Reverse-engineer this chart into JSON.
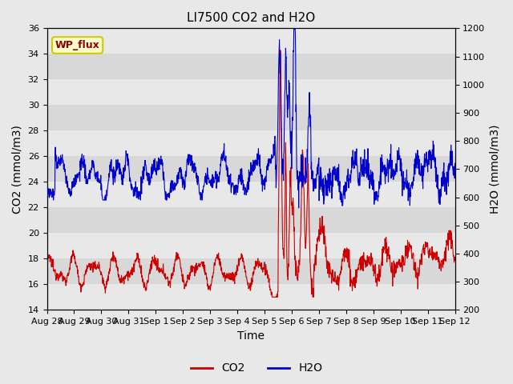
{
  "title": "LI7500 CO2 and H2O",
  "xlabel": "Time",
  "ylabel_left": "CO2 (mmol/m3)",
  "ylabel_right": "H2O (mmol/m3)",
  "ylim_left": [
    14,
    36
  ],
  "ylim_right": [
    200,
    1200
  ],
  "yticks_left": [
    14,
    16,
    18,
    20,
    22,
    24,
    26,
    28,
    30,
    32,
    34,
    36
  ],
  "yticks_right": [
    200,
    300,
    400,
    500,
    600,
    700,
    800,
    900,
    1000,
    1100,
    1200
  ],
  "xtick_labels": [
    "Aug 28",
    "Aug 29",
    "Aug 30",
    "Aug 31",
    "Sep 1",
    "Sep 2",
    "Sep 3",
    "Sep 4",
    "Sep 5",
    "Sep 6",
    "Sep 7",
    "Sep 8",
    "Sep 9",
    "Sep 10",
    "Sep 11",
    "Sep 12"
  ],
  "legend_label_co2": "CO2",
  "legend_label_h2o": "H2O",
  "co2_color": "#cc0000",
  "h2o_color": "#0000cc",
  "background_color": "#e8e8e8",
  "plot_bg_color": "#f0f0f0",
  "annotation_text": "WP_flux",
  "annotation_box_color": "#ffffcc",
  "annotation_box_edge": "#cccc00",
  "title_fontsize": 11,
  "axis_fontsize": 10,
  "tick_fontsize": 8,
  "legend_fontsize": 10,
  "band_colors": [
    "#e8e8e8",
    "#d8d8d8"
  ]
}
